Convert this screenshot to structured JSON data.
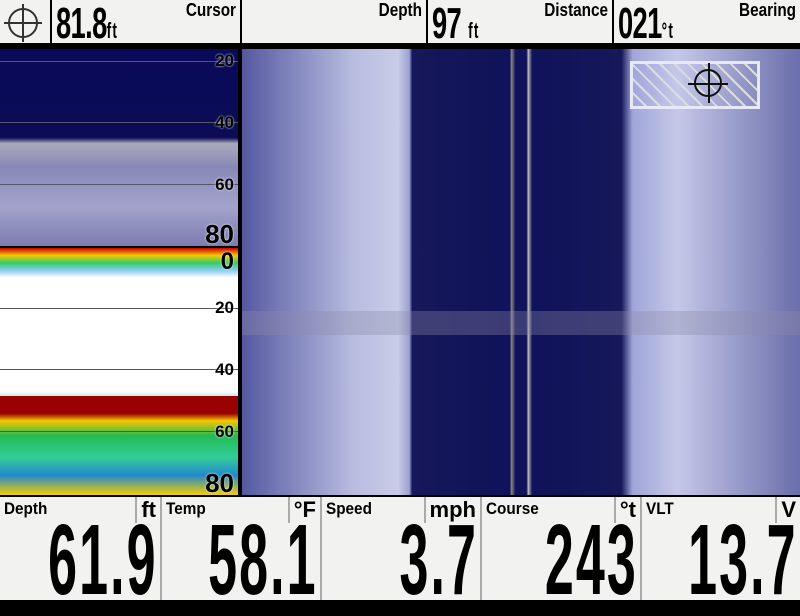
{
  "top_bar": {
    "cursor": {
      "label": "Cursor",
      "value": "81.8",
      "unit": "ft"
    },
    "depth": {
      "label": "Depth",
      "value": "",
      "unit": ""
    },
    "distance": {
      "label": "Distance",
      "value": "97",
      "unit": "ft"
    },
    "bearing": {
      "label": "Bearing",
      "value": "021",
      "unit": "°t"
    },
    "icon": "crosshair-icon"
  },
  "down_imaging": {
    "depth_labels": [
      "20",
      "40",
      "60",
      "80"
    ]
  },
  "sonar": {
    "depth_labels": [
      "0",
      "20",
      "40",
      "60",
      "80"
    ]
  },
  "bottom_bar": [
    {
      "label": "Depth",
      "unit": "ft",
      "value": "61.9"
    },
    {
      "label": "Temp",
      "unit": "°F",
      "value": "58.1"
    },
    {
      "label": "Speed",
      "unit": "mph",
      "value": "3.7"
    },
    {
      "label": "Course",
      "unit": "°t",
      "value": "243"
    },
    {
      "label": "VLT",
      "unit": "V",
      "value": "13.7"
    }
  ],
  "colors": {
    "water": "#10125a",
    "sonar_strong": "#cc0000",
    "sonar_mid": "#f5c800",
    "sonar_weak": "#33cc66"
  }
}
